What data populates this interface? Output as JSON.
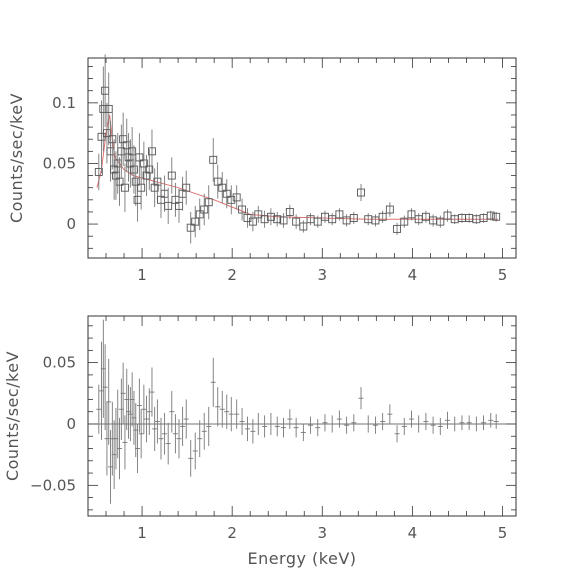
{
  "chart_data": [
    {
      "type": "scatter",
      "panel": "top",
      "title": "",
      "xlabel": "",
      "ylabel": "Counts/sec/keV",
      "xlim": [
        0.4,
        5.15
      ],
      "ylim": [
        -0.028,
        0.137
      ],
      "xticks": [
        1,
        2,
        3,
        4,
        5
      ],
      "xtick_labels": [
        "1",
        "2",
        "3",
        "4",
        "5"
      ],
      "yticks": [
        0,
        0.05,
        0.1
      ],
      "ytick_labels": [
        "0",
        "0.05",
        "0.1"
      ],
      "marker": "open-square",
      "colors": {
        "data": "#555555",
        "model": "#e07070"
      },
      "series": [
        {
          "x": [
            0.52,
            0.55,
            0.57,
            0.59,
            0.61,
            0.63,
            0.65,
            0.67,
            0.69,
            0.71,
            0.73,
            0.75,
            0.77,
            0.79,
            0.81,
            0.83,
            0.85,
            0.87,
            0.89,
            0.91,
            0.93,
            0.95,
            0.97,
            0.99,
            1.02,
            1.05,
            1.08,
            1.11,
            1.14,
            1.17,
            1.21,
            1.25,
            1.29,
            1.33,
            1.37,
            1.41,
            1.45,
            1.49,
            1.54,
            1.59,
            1.64,
            1.69,
            1.74,
            1.79,
            1.84,
            1.89,
            1.94,
            1.99,
            2.05,
            2.11,
            2.17,
            2.23,
            2.29,
            2.36,
            2.43,
            2.5,
            2.57,
            2.64,
            2.71,
            2.79,
            2.87,
            2.95,
            3.03,
            3.11,
            3.19,
            3.27,
            3.35,
            3.43,
            3.51,
            3.59,
            3.67,
            3.75,
            3.83,
            3.91,
            3.99,
            4.07,
            4.15,
            4.23,
            4.31,
            4.39,
            4.47,
            4.55,
            4.63,
            4.71,
            4.79,
            4.87,
            4.93
          ],
          "y": [
            0.043,
            0.072,
            0.095,
            0.11,
            0.075,
            0.095,
            0.06,
            0.07,
            0.045,
            0.04,
            0.05,
            0.035,
            0.06,
            0.07,
            0.03,
            0.065,
            0.055,
            0.05,
            0.06,
            0.045,
            0.035,
            0.02,
            0.055,
            0.03,
            0.05,
            0.04,
            0.045,
            0.06,
            0.03,
            0.035,
            0.02,
            0.025,
            0.015,
            0.04,
            0.02,
            0.015,
            0.025,
            0.03,
            -0.003,
            0.002,
            0.008,
            0.012,
            0.018,
            0.053,
            0.035,
            0.03,
            0.025,
            0.02,
            0.022,
            0.012,
            0.005,
            0.002,
            0.008,
            0.004,
            0.006,
            0.004,
            0.003,
            0.01,
            0.002,
            -0.002,
            0.004,
            0.002,
            0.006,
            0.004,
            0.008,
            0.003,
            0.005,
            0.026,
            0.004,
            0.003,
            0.006,
            0.012,
            -0.004,
            0.002,
            0.008,
            0.004,
            0.006,
            0.003,
            0.002,
            0.007,
            0.004,
            0.005,
            0.005,
            0.004,
            0.005,
            0.007,
            0.006
          ],
          "yerr": [
            0.015,
            0.03,
            0.035,
            0.03,
            0.025,
            0.03,
            0.025,
            0.025,
            0.025,
            0.02,
            0.025,
            0.02,
            0.022,
            0.022,
            0.02,
            0.022,
            0.02,
            0.02,
            0.02,
            0.02,
            0.02,
            0.018,
            0.02,
            0.018,
            0.018,
            0.017,
            0.017,
            0.018,
            0.016,
            0.016,
            0.015,
            0.015,
            0.015,
            0.015,
            0.014,
            0.014,
            0.014,
            0.014,
            0.013,
            0.013,
            0.013,
            0.013,
            0.014,
            0.018,
            0.014,
            0.013,
            0.012,
            0.012,
            0.01,
            0.009,
            0.008,
            0.008,
            0.007,
            0.007,
            0.007,
            0.006,
            0.006,
            0.006,
            0.006,
            0.005,
            0.005,
            0.005,
            0.005,
            0.005,
            0.005,
            0.005,
            0.005,
            0.007,
            0.005,
            0.005,
            0.005,
            0.006,
            0.005,
            0.005,
            0.005,
            0.005,
            0.005,
            0.005,
            0.005,
            0.005,
            0.004,
            0.004,
            0.004,
            0.004,
            0.004,
            0.004,
            0.004
          ]
        },
        {
          "style": "model-line",
          "x": [
            0.5,
            0.55,
            0.6,
            0.64,
            0.67,
            0.7,
            0.75,
            0.8,
            0.9,
            1.0,
            1.1,
            1.2,
            1.4,
            1.6,
            1.8,
            2.0,
            2.2,
            2.5,
            3.0,
            3.5,
            4.0,
            4.5,
            4.95
          ],
          "y": [
            0.03,
            0.045,
            0.075,
            0.09,
            0.07,
            0.055,
            0.05,
            0.045,
            0.04,
            0.038,
            0.036,
            0.034,
            0.03,
            0.025,
            0.02,
            0.014,
            0.008,
            0.006,
            0.005,
            0.004,
            0.004,
            0.004,
            0.004
          ]
        }
      ]
    },
    {
      "type": "scatter",
      "panel": "bottom",
      "title": "",
      "xlabel": "Energy (keV)",
      "ylabel": "Counts/sec/keV",
      "xlim": [
        0.4,
        5.15
      ],
      "ylim": [
        -0.075,
        0.088
      ],
      "xticks": [
        1,
        2,
        3,
        4,
        5
      ],
      "xtick_labels": [
        "1",
        "2",
        "3",
        "4",
        "5"
      ],
      "yticks": [
        -0.05,
        0,
        0.05
      ],
      "ytick_labels": [
        "−0.05",
        "0",
        "0.05"
      ],
      "marker": "cross",
      "colors": {
        "data": "#777777"
      },
      "series": [
        {
          "x": [
            0.52,
            0.55,
            0.57,
            0.59,
            0.61,
            0.63,
            0.65,
            0.67,
            0.69,
            0.71,
            0.73,
            0.75,
            0.77,
            0.79,
            0.81,
            0.83,
            0.85,
            0.87,
            0.89,
            0.91,
            0.93,
            0.95,
            0.97,
            0.99,
            1.02,
            1.05,
            1.08,
            1.11,
            1.14,
            1.17,
            1.21,
            1.25,
            1.29,
            1.33,
            1.37,
            1.41,
            1.45,
            1.49,
            1.54,
            1.59,
            1.64,
            1.69,
            1.74,
            1.79,
            1.84,
            1.89,
            1.94,
            1.99,
            2.05,
            2.11,
            2.17,
            2.23,
            2.29,
            2.36,
            2.43,
            2.5,
            2.57,
            2.64,
            2.71,
            2.79,
            2.87,
            2.95,
            3.03,
            3.11,
            3.19,
            3.27,
            3.35,
            3.43,
            3.51,
            3.59,
            3.67,
            3.75,
            3.83,
            3.91,
            3.99,
            4.07,
            4.15,
            4.23,
            4.31,
            4.39,
            4.47,
            4.55,
            4.63,
            4.71,
            4.79,
            4.87,
            4.93
          ],
          "y": [
            0.012,
            0.027,
            0.045,
            0.03,
            -0.012,
            0.018,
            -0.035,
            -0.012,
            -0.025,
            -0.012,
            0.0,
            -0.02,
            0.012,
            0.025,
            -0.015,
            0.02,
            0.01,
            0.008,
            0.02,
            0.005,
            -0.005,
            -0.02,
            0.015,
            -0.008,
            0.012,
            0.004,
            0.01,
            0.026,
            -0.004,
            0.002,
            -0.012,
            -0.008,
            -0.016,
            0.01,
            -0.008,
            -0.012,
            -0.002,
            0.004,
            -0.028,
            -0.022,
            -0.012,
            -0.006,
            -0.002,
            0.034,
            0.014,
            0.012,
            0.01,
            0.008,
            0.008,
            0.002,
            -0.004,
            -0.006,
            0.0,
            -0.002,
            0.0,
            -0.002,
            -0.003,
            0.004,
            -0.003,
            -0.007,
            -0.001,
            -0.003,
            0.001,
            0.0,
            0.004,
            -0.001,
            0.001,
            0.021,
            0.0,
            -0.001,
            0.002,
            0.008,
            -0.008,
            -0.002,
            0.004,
            0.0,
            0.002,
            -0.001,
            -0.002,
            0.003,
            0.0,
            0.001,
            0.001,
            0.0,
            0.001,
            0.003,
            0.002
          ],
          "yerr": [
            0.02,
            0.04,
            0.04,
            0.035,
            0.03,
            0.035,
            0.03,
            0.03,
            0.028,
            0.025,
            0.028,
            0.025,
            0.025,
            0.025,
            0.022,
            0.025,
            0.022,
            0.022,
            0.022,
            0.022,
            0.022,
            0.02,
            0.022,
            0.02,
            0.02,
            0.019,
            0.019,
            0.02,
            0.018,
            0.018,
            0.017,
            0.017,
            0.017,
            0.017,
            0.016,
            0.016,
            0.016,
            0.016,
            0.015,
            0.015,
            0.015,
            0.015,
            0.016,
            0.02,
            0.016,
            0.015,
            0.014,
            0.014,
            0.012,
            0.011,
            0.01,
            0.01,
            0.009,
            0.009,
            0.009,
            0.008,
            0.008,
            0.008,
            0.008,
            0.007,
            0.007,
            0.007,
            0.007,
            0.007,
            0.007,
            0.007,
            0.007,
            0.009,
            0.007,
            0.007,
            0.007,
            0.008,
            0.007,
            0.007,
            0.007,
            0.007,
            0.007,
            0.007,
            0.007,
            0.007,
            0.006,
            0.006,
            0.006,
            0.006,
            0.006,
            0.006,
            0.006
          ]
        }
      ]
    }
  ]
}
